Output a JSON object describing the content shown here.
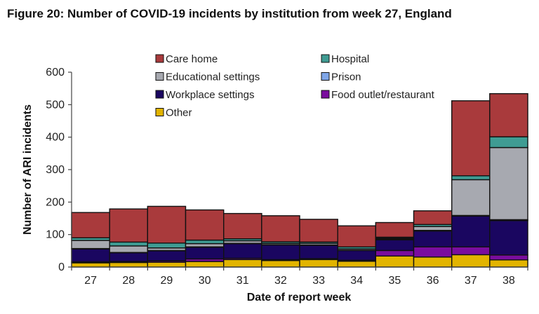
{
  "title": "Figure 20: Number of COVID-19 incidents by institution from week 27, England",
  "chart_data": {
    "type": "bar",
    "stacked": true,
    "xlabel": "Date of report week",
    "ylabel": "Number of ARI incidents",
    "ylim": [
      0,
      600
    ],
    "yticks": [
      0,
      100,
      200,
      300,
      400,
      500,
      600
    ],
    "grid": false,
    "legend_position": "top",
    "categories": [
      "27",
      "28",
      "29",
      "30",
      "31",
      "32",
      "33",
      "34",
      "35",
      "36",
      "37",
      "38"
    ],
    "series": [
      {
        "name": "Other",
        "color": "#e2b400",
        "values": [
          13,
          14,
          15,
          17,
          23,
          20,
          23,
          18,
          34,
          31,
          38,
          22
        ]
      },
      {
        "name": "Food outlet/restaurant",
        "color": "#7a0d9e",
        "values": [
          3,
          3,
          4,
          8,
          4,
          3,
          3,
          3,
          17,
          31,
          24,
          15
        ]
      },
      {
        "name": "Workplace settings",
        "color": "#1a0660",
        "values": [
          40,
          27,
          31,
          36,
          45,
          45,
          41,
          30,
          33,
          49,
          95,
          106
        ]
      },
      {
        "name": "Prison",
        "color": "#7fa6e8",
        "values": [
          1,
          1,
          1,
          1,
          1,
          1,
          1,
          1,
          2,
          2,
          2,
          3
        ]
      },
      {
        "name": "Educational settings",
        "color": "#a7a9b0",
        "values": [
          25,
          20,
          8,
          10,
          8,
          4,
          5,
          4,
          3,
          12,
          110,
          222
        ]
      },
      {
        "name": "Hospital",
        "color": "#3f9c93",
        "values": [
          8,
          12,
          15,
          11,
          6,
          5,
          4,
          6,
          3,
          6,
          12,
          33
        ]
      },
      {
        "name": "Care home",
        "color": "#a93a3c",
        "values": [
          78,
          102,
          113,
          93,
          78,
          80,
          70,
          65,
          45,
          42,
          231,
          133
        ]
      }
    ],
    "legend": [
      "Care home",
      "Hospital",
      "Educational settings",
      "Prison",
      "Workplace settings",
      "Food outlet/restaurant",
      "Other"
    ]
  }
}
